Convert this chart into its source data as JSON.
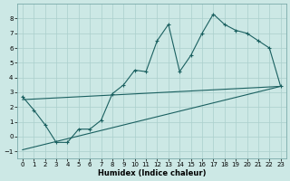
{
  "xlabel": "Humidex (Indice chaleur)",
  "bg_color": "#cce8e5",
  "grid_color": "#aacfcc",
  "line_color": "#1a6060",
  "xlim": [
    -0.5,
    23.5
  ],
  "ylim": [
    -1.5,
    9.0
  ],
  "yticks": [
    -1,
    0,
    1,
    2,
    3,
    4,
    5,
    6,
    7,
    8
  ],
  "xticks": [
    0,
    1,
    2,
    3,
    4,
    5,
    6,
    7,
    8,
    9,
    10,
    11,
    12,
    13,
    14,
    15,
    16,
    17,
    18,
    19,
    20,
    21,
    22,
    23
  ],
  "line1_x": [
    0,
    1,
    2,
    3,
    4,
    5,
    6,
    7,
    8,
    9,
    10,
    11,
    12,
    13,
    14,
    15,
    16,
    17,
    18,
    19,
    20,
    21,
    22,
    23
  ],
  "line1_y": [
    2.7,
    1.8,
    0.8,
    -0.4,
    -0.4,
    0.5,
    0.5,
    1.1,
    2.9,
    3.5,
    4.5,
    4.4,
    6.5,
    7.6,
    4.4,
    5.5,
    7.0,
    8.3,
    7.6,
    7.2,
    7.0,
    6.5,
    6.0,
    3.4
  ],
  "line2_x": [
    0,
    23
  ],
  "line2_y": [
    2.5,
    3.4
  ],
  "line3_x": [
    0,
    23
  ],
  "line3_y": [
    -0.9,
    3.4
  ],
  "xlabel_fontsize": 6.0,
  "tick_fontsize": 5.0
}
